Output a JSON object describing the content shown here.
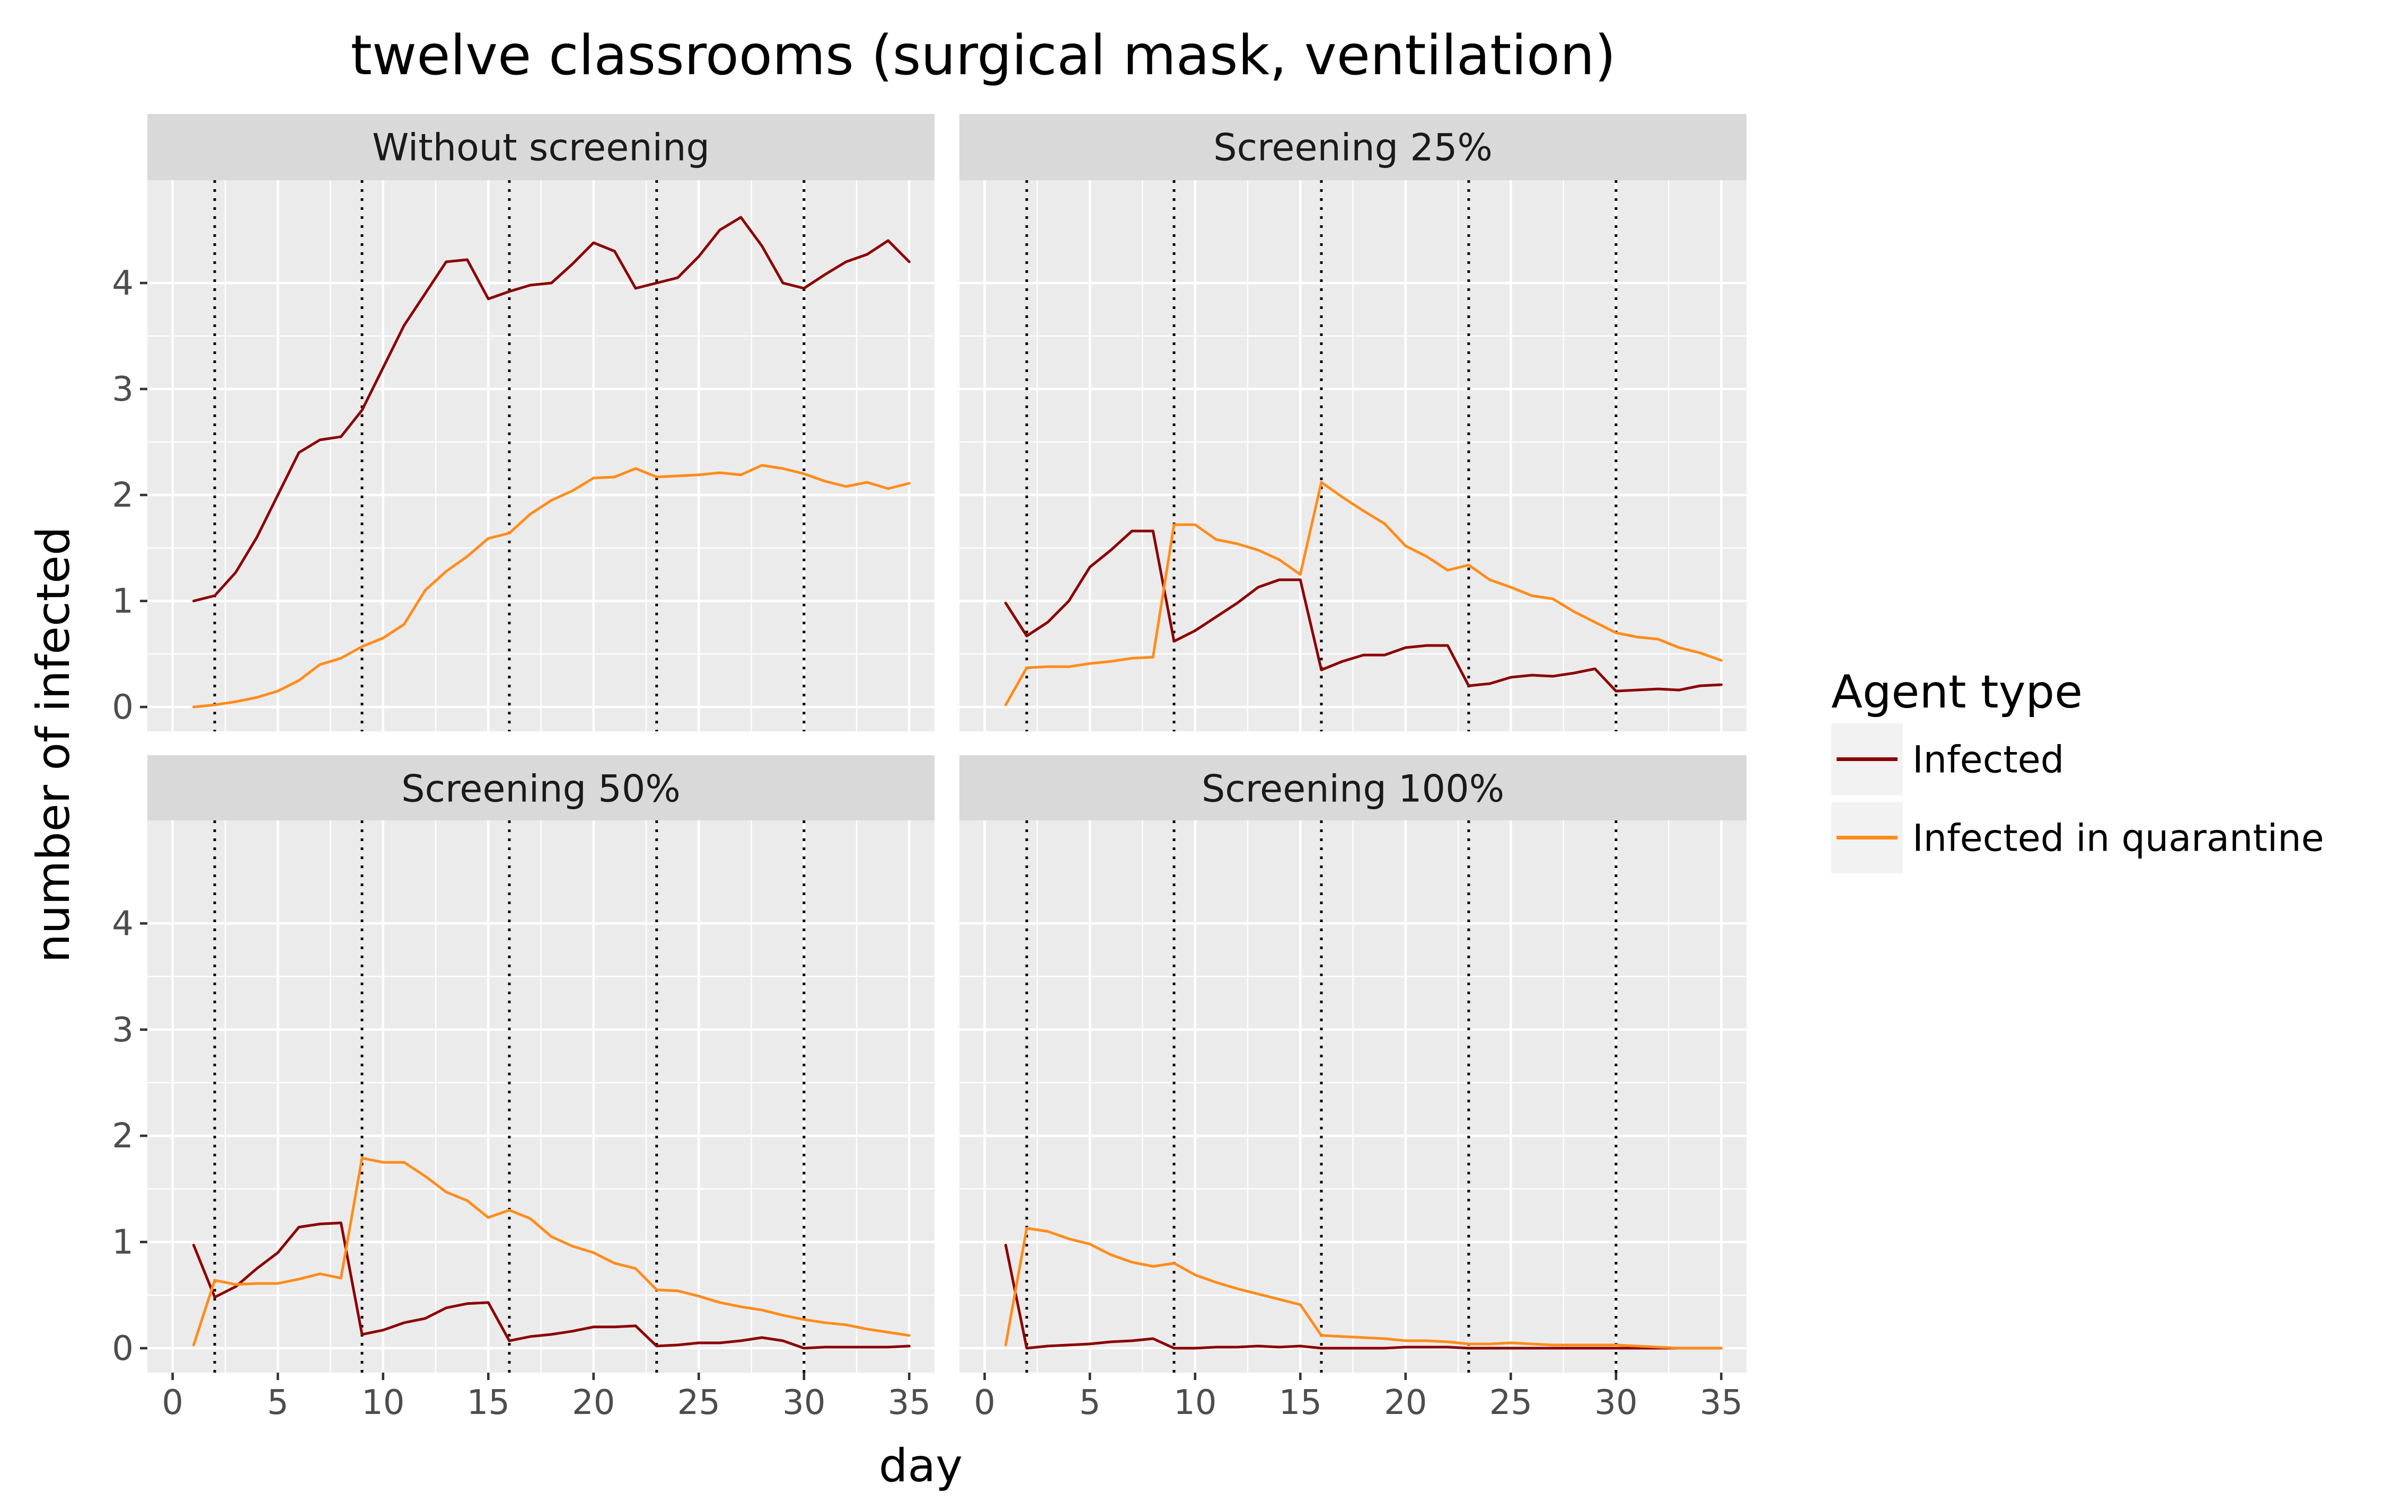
{
  "chart_data": {
    "type": "line",
    "title": "twelve classrooms (surgical mask, ventilation)",
    "xlabel": "day",
    "ylabel": "number of infected",
    "xlim": [
      0,
      35
    ],
    "ylim": [
      0,
      4.6
    ],
    "x_ticks": [
      0,
      5,
      10,
      15,
      20,
      25,
      30,
      35
    ],
    "y_ticks": [
      0,
      1,
      2,
      3,
      4
    ],
    "vertical_reference_lines": [
      2,
      9,
      16,
      23,
      30
    ],
    "grid": true,
    "legend": {
      "title": "Agent type",
      "position": "right",
      "entries": [
        {
          "label": "Infected",
          "color": "#8b0000"
        },
        {
          "label": "Infected in quarantine",
          "color": "#ff8c1a"
        }
      ]
    },
    "x": [
      1,
      2,
      3,
      4,
      5,
      6,
      7,
      8,
      9,
      10,
      11,
      12,
      13,
      14,
      15,
      16,
      17,
      18,
      19,
      20,
      21,
      22,
      23,
      24,
      25,
      26,
      27,
      28,
      29,
      30,
      31,
      32,
      33,
      34,
      35
    ],
    "facets": [
      {
        "label": "Without screening",
        "series": [
          {
            "name": "Infected",
            "values": [
              1.0,
              1.05,
              1.27,
              1.6,
              2.0,
              2.4,
              2.52,
              2.55,
              2.8,
              3.2,
              3.6,
              3.9,
              4.2,
              4.22,
              3.85,
              3.92,
              3.98,
              4.0,
              4.18,
              4.38,
              4.3,
              3.95,
              4.0,
              4.05,
              4.25,
              4.5,
              4.62,
              4.35,
              4.0,
              3.95,
              4.08,
              4.2,
              4.27,
              4.4,
              4.2
            ]
          },
          {
            "name": "Infected in quarantine",
            "values": [
              0.0,
              0.02,
              0.05,
              0.09,
              0.15,
              0.25,
              0.4,
              0.46,
              0.57,
              0.65,
              0.78,
              1.1,
              1.28,
              1.42,
              1.59,
              1.64,
              1.82,
              1.95,
              2.04,
              2.16,
              2.17,
              2.25,
              2.17,
              2.18,
              2.19,
              2.21,
              2.19,
              2.28,
              2.25,
              2.2,
              2.13,
              2.08,
              2.12,
              2.06,
              2.11
            ]
          }
        ]
      },
      {
        "label": "Screening 25%",
        "series": [
          {
            "name": "Infected",
            "values": [
              0.98,
              0.67,
              0.8,
              1.0,
              1.32,
              1.48,
              1.66,
              1.66,
              0.62,
              0.72,
              0.85,
              0.98,
              1.13,
              1.2,
              1.2,
              0.35,
              0.43,
              0.49,
              0.49,
              0.56,
              0.58,
              0.58,
              0.2,
              0.22,
              0.28,
              0.3,
              0.29,
              0.32,
              0.36,
              0.15,
              0.16,
              0.17,
              0.16,
              0.2,
              0.21
            ]
          },
          {
            "name": "Infected in quarantine",
            "values": [
              0.02,
              0.37,
              0.38,
              0.38,
              0.41,
              0.43,
              0.46,
              0.47,
              1.72,
              1.72,
              1.58,
              1.54,
              1.48,
              1.39,
              1.25,
              2.12,
              1.98,
              1.85,
              1.73,
              1.52,
              1.42,
              1.29,
              1.34,
              1.2,
              1.13,
              1.05,
              1.02,
              0.9,
              0.8,
              0.7,
              0.66,
              0.64,
              0.56,
              0.51,
              0.44
            ]
          }
        ]
      },
      {
        "label": "Screening 50%",
        "series": [
          {
            "name": "Infected",
            "values": [
              0.97,
              0.48,
              0.58,
              0.75,
              0.9,
              1.14,
              1.17,
              1.18,
              0.13,
              0.17,
              0.24,
              0.28,
              0.38,
              0.42,
              0.43,
              0.07,
              0.11,
              0.13,
              0.16,
              0.2,
              0.2,
              0.21,
              0.02,
              0.03,
              0.05,
              0.05,
              0.07,
              0.1,
              0.07,
              0.0,
              0.01,
              0.01,
              0.01,
              0.01,
              0.02
            ]
          },
          {
            "name": "Infected in quarantine",
            "values": [
              0.03,
              0.64,
              0.6,
              0.61,
              0.61,
              0.65,
              0.7,
              0.66,
              1.79,
              1.75,
              1.75,
              1.62,
              1.47,
              1.39,
              1.23,
              1.3,
              1.22,
              1.05,
              0.96,
              0.9,
              0.8,
              0.75,
              0.55,
              0.54,
              0.49,
              0.43,
              0.39,
              0.36,
              0.31,
              0.27,
              0.24,
              0.22,
              0.18,
              0.15,
              0.12
            ]
          }
        ]
      },
      {
        "label": "Screening 100%",
        "series": [
          {
            "name": "Infected",
            "values": [
              0.97,
              0.0,
              0.02,
              0.03,
              0.04,
              0.06,
              0.07,
              0.09,
              0.0,
              0.0,
              0.01,
              0.01,
              0.02,
              0.01,
              0.02,
              0.0,
              0.0,
              0.0,
              0.0,
              0.01,
              0.01,
              0.01,
              0.0,
              0.0,
              0.0,
              0.0,
              0.0,
              0.0,
              0.0,
              0.0,
              0.0,
              0.0,
              0.0,
              0.0,
              0.0
            ]
          },
          {
            "name": "Infected in quarantine",
            "values": [
              0.03,
              1.13,
              1.1,
              1.03,
              0.98,
              0.88,
              0.81,
              0.77,
              0.8,
              0.69,
              0.62,
              0.56,
              0.51,
              0.46,
              0.41,
              0.12,
              0.11,
              0.1,
              0.09,
              0.07,
              0.07,
              0.06,
              0.04,
              0.04,
              0.05,
              0.04,
              0.03,
              0.03,
              0.03,
              0.03,
              0.02,
              0.01,
              0.0,
              0.0,
              0.0
            ]
          }
        ]
      }
    ]
  }
}
